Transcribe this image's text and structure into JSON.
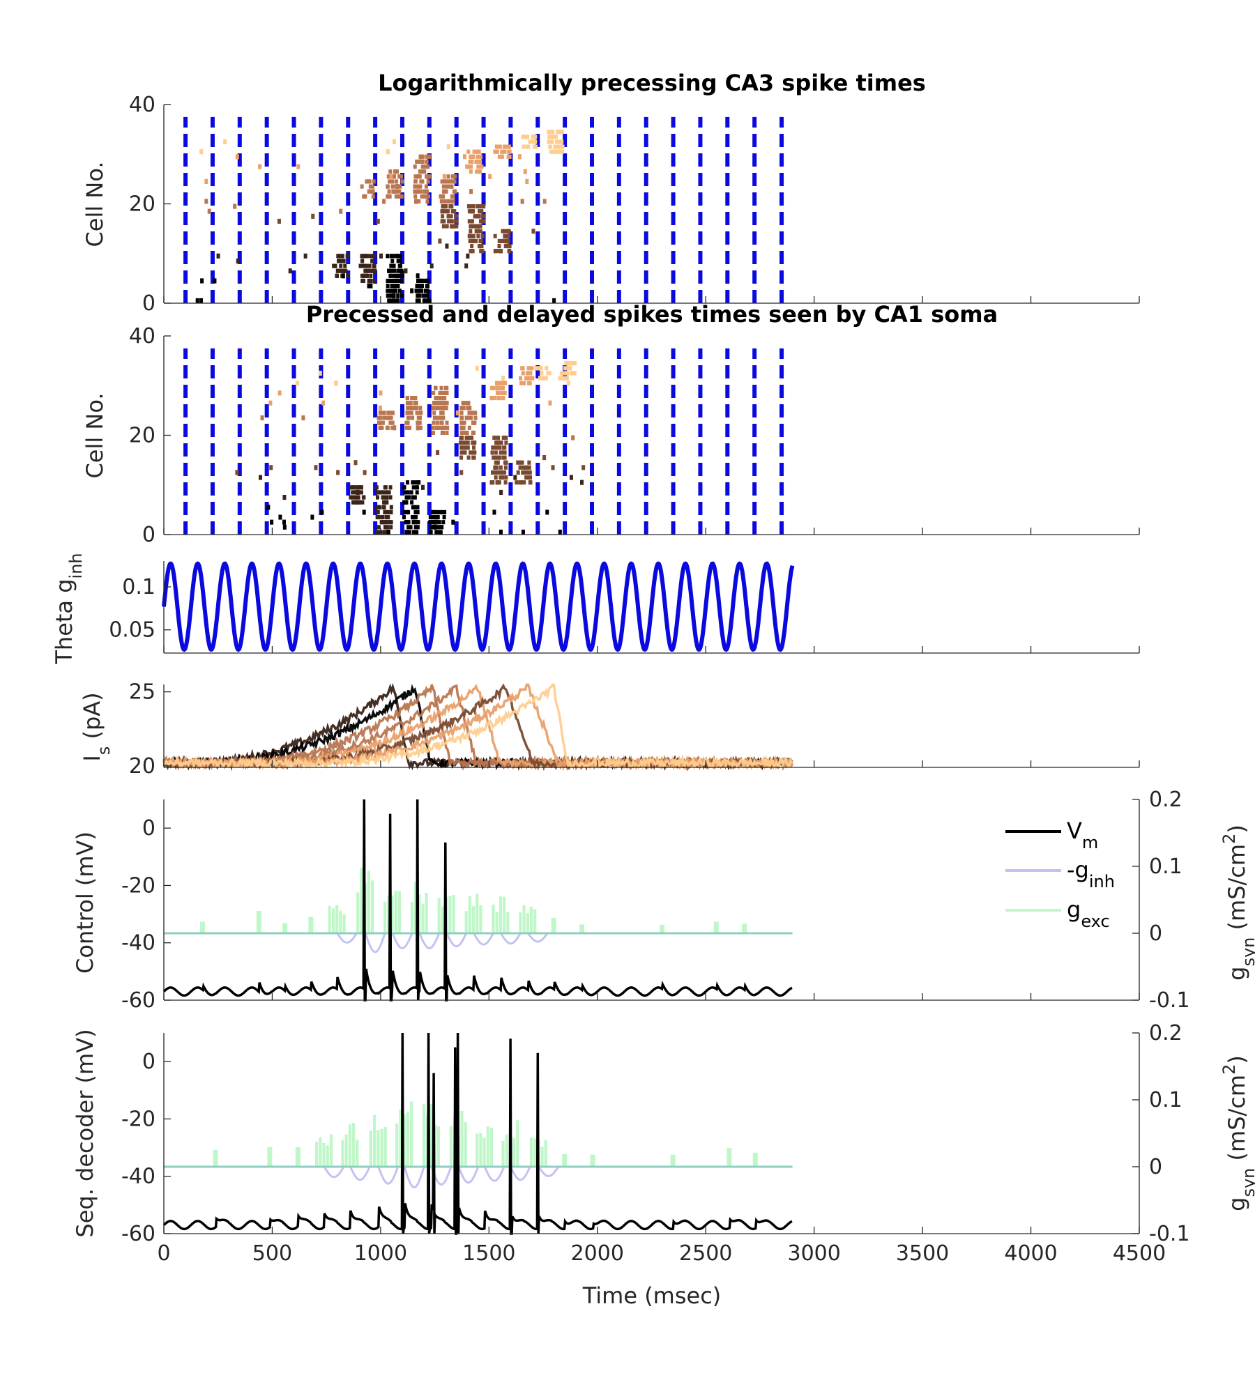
{
  "colors": {
    "theta": "#0a0adf",
    "vm": "#000000",
    "ginh": "#c3c3f3",
    "gexc": "#bff7c8",
    "overlap": "#8fcfc2",
    "cell_gradient": [
      "#000000",
      "#3b2418",
      "#7a4a30",
      "#b9764f",
      "#e9a06a",
      "#ffcd8e"
    ]
  },
  "x_axis": {
    "label": "Time (msec)",
    "lim": [
      0,
      4500
    ],
    "ticks": [
      "0",
      "500",
      "1000",
      "1500",
      "2000",
      "2500",
      "3000",
      "3500",
      "4000",
      "4500"
    ],
    "tick_values": [
      0,
      500,
      1000,
      1500,
      2000,
      2500,
      3000,
      3500,
      4000,
      4500
    ]
  },
  "chart_data": [
    {
      "id": "ca3",
      "type": "scatter",
      "title": "Logarithmically precessing CA3 spike times",
      "ylabel": "Cell No.",
      "ylim": [
        0,
        40
      ],
      "yticks": [
        "0",
        "20",
        "40"
      ],
      "ytick_values": [
        0,
        20,
        40
      ],
      "theta_markers_ms": [
        100,
        225,
        350,
        475,
        600,
        725,
        850,
        975,
        1100,
        1225,
        1350,
        1475,
        1600,
        1725,
        1850,
        1975,
        2100,
        2225,
        2350,
        2475,
        2600,
        2725,
        2850
      ],
      "spike_groups": [
        {
          "center_ms": 1190,
          "cells": [
            0,
            4
          ],
          "color_index": 0
        },
        {
          "center_ms": 1065,
          "cells": [
            0,
            9
          ],
          "color_index": 0
        },
        {
          "center_ms": 940,
          "cells": [
            4,
            9
          ],
          "color_index": 1
        },
        {
          "center_ms": 815,
          "cells": [
            5,
            9
          ],
          "color_index": 1
        },
        {
          "center_ms": 1560,
          "cells": [
            10,
            14
          ],
          "color_index": 2
        },
        {
          "center_ms": 1440,
          "cells": [
            10,
            19
          ],
          "color_index": 2
        },
        {
          "center_ms": 1315,
          "cells": [
            15,
            19
          ],
          "color_index": 2
        },
        {
          "center_ms": 1190,
          "cells": [
            20,
            29
          ],
          "color_index": 3
        },
        {
          "center_ms": 1310,
          "cells": [
            20,
            25
          ],
          "color_index": 3
        },
        {
          "center_ms": 1065,
          "cells": [
            21,
            26
          ],
          "color_index": 3
        },
        {
          "center_ms": 940,
          "cells": [
            21,
            24
          ],
          "color_index": 3
        },
        {
          "center_ms": 1430,
          "cells": [
            26,
            30
          ],
          "color_index": 4
        },
        {
          "center_ms": 1560,
          "cells": [
            29,
            31
          ],
          "color_index": 4
        },
        {
          "center_ms": 1805,
          "cells": [
            30,
            34
          ],
          "color_index": 5
        },
        {
          "center_ms": 1685,
          "cells": [
            31,
            33
          ],
          "color_index": 5
        }
      ]
    },
    {
      "id": "ca1",
      "type": "scatter",
      "title": "Precessed and delayed spikes times seen by CA1 soma",
      "ylabel": "Cell No.",
      "ylim": [
        0,
        40
      ],
      "yticks": [
        "0",
        "20",
        "40"
      ],
      "ytick_values": [
        0,
        20,
        40
      ],
      "theta_markers_ms": [
        100,
        225,
        350,
        475,
        600,
        725,
        850,
        975,
        1100,
        1225,
        1350,
        1475,
        1600,
        1725,
        1850,
        1975,
        2100,
        2225,
        2350,
        2475,
        2600,
        2725,
        2850
      ],
      "spike_groups": [
        {
          "center_ms": 1260,
          "cells": [
            0,
            4
          ],
          "color_index": 0
        },
        {
          "center_ms": 1140,
          "cells": [
            0,
            10
          ],
          "color_index": 0
        },
        {
          "center_ms": 1015,
          "cells": [
            0,
            9
          ],
          "color_index": 1
        },
        {
          "center_ms": 890,
          "cells": [
            6,
            9
          ],
          "color_index": 1
        },
        {
          "center_ms": 1660,
          "cells": [
            10,
            14
          ],
          "color_index": 2
        },
        {
          "center_ms": 1545,
          "cells": [
            10,
            19
          ],
          "color_index": 2
        },
        {
          "center_ms": 1400,
          "cells": [
            15,
            19
          ],
          "color_index": 2
        },
        {
          "center_ms": 1275,
          "cells": [
            20,
            29
          ],
          "color_index": 3
        },
        {
          "center_ms": 1405,
          "cells": [
            20,
            26
          ],
          "color_index": 3
        },
        {
          "center_ms": 1150,
          "cells": [
            21,
            27
          ],
          "color_index": 3
        },
        {
          "center_ms": 1020,
          "cells": [
            21,
            24
          ],
          "color_index": 3
        },
        {
          "center_ms": 1545,
          "cells": [
            27,
            30
          ],
          "color_index": 4
        },
        {
          "center_ms": 1665,
          "cells": [
            30,
            33
          ],
          "color_index": 4
        },
        {
          "center_ms": 1860,
          "cells": [
            31,
            34
          ],
          "color_index": 5
        },
        {
          "center_ms": 1750,
          "cells": [
            31,
            33
          ],
          "color_index": 5
        }
      ]
    },
    {
      "id": "theta",
      "type": "line",
      "ylabel": "Theta g",
      "ylabel_sub": "inh",
      "ylim": [
        0.023,
        0.13
      ],
      "yticks": [
        "0.05",
        "0.1"
      ],
      "ytick_values": [
        0.05,
        0.1
      ],
      "x_range_ms": [
        0,
        2900
      ],
      "period_ms": 125,
      "mean": 0.077,
      "amplitude": 0.05
    },
    {
      "id": "is",
      "type": "line",
      "ylabel": "I",
      "ylabel_sub": "s",
      "ylabel_suffix": " (pA)",
      "ylim": [
        19.9,
        25.5
      ],
      "yticks": [
        "20",
        "25"
      ],
      "ytick_values": [
        20,
        25
      ],
      "x_range_ms": [
        0,
        2900
      ],
      "baseline": 20.2,
      "peak": 25.3,
      "ramps": [
        {
          "start_ms": 100,
          "peak_ms": 1060,
          "end_ms": 1130,
          "color_index": 1
        },
        {
          "start_ms": 150,
          "peak_ms": 1160,
          "end_ms": 1230,
          "color_index": 0
        },
        {
          "start_ms": 300,
          "peak_ms": 1240,
          "end_ms": 1320,
          "color_index": 3
        },
        {
          "start_ms": 380,
          "peak_ms": 1350,
          "end_ms": 1440,
          "color_index": 3
        },
        {
          "start_ms": 450,
          "peak_ms": 1450,
          "end_ms": 1550,
          "color_index": 4
        },
        {
          "start_ms": 520,
          "peak_ms": 1580,
          "end_ms": 1700,
          "color_index": 2
        },
        {
          "start_ms": 600,
          "peak_ms": 1680,
          "end_ms": 1820,
          "color_index": 4
        },
        {
          "start_ms": 700,
          "peak_ms": 1800,
          "end_ms": 1860,
          "color_index": 5
        }
      ]
    },
    {
      "id": "control",
      "type": "line",
      "ylabel": "Control (mV)",
      "ylim": [
        -60,
        10
      ],
      "yticks": [
        "-60",
        "-40",
        "-20",
        "0"
      ],
      "ytick_values": [
        -60,
        -40,
        -20,
        0
      ],
      "right_ylabel": "g",
      "right_ylabel_sub": "syn",
      "right_ylabel_suffix": "  (mS/cm",
      "right_ylabel_sup": "2",
      "right_ylabel_end": ")",
      "right_ylim": [
        -0.1,
        0.2
      ],
      "right_yticks": [
        "-0.1",
        "0",
        "0.1",
        "0.2"
      ],
      "right_ytick_values": [
        -0.1,
        0,
        0.1,
        0.2
      ],
      "x_range_ms": [
        0,
        2900
      ],
      "vm_rest": -57,
      "spikes_ms": [
        925,
        1045,
        1170,
        1300
      ],
      "spike_peaks": [
        10,
        5,
        10,
        -5
      ],
      "gexc_events": [
        {
          "t_ms": 180,
          "amp": 0.02
        },
        {
          "t_ms": 440,
          "amp": 0.04
        },
        {
          "t_ms": 560,
          "amp": 0.02
        },
        {
          "t_ms": 680,
          "amp": 0.035
        },
        {
          "t_ms": 800,
          "amp": 0.05
        },
        {
          "t_ms": 930,
          "amp": 0.1
        },
        {
          "t_ms": 1055,
          "amp": 0.08
        },
        {
          "t_ms": 1180,
          "amp": 0.08
        },
        {
          "t_ms": 1305,
          "amp": 0.07
        },
        {
          "t_ms": 1430,
          "amp": 0.06
        },
        {
          "t_ms": 1555,
          "amp": 0.055
        },
        {
          "t_ms": 1680,
          "amp": 0.045
        },
        {
          "t_ms": 1800,
          "amp": 0.035
        },
        {
          "t_ms": 1930,
          "amp": 0.02
        },
        {
          "t_ms": 2300,
          "amp": 0.02
        },
        {
          "t_ms": 2550,
          "amp": 0.02
        },
        {
          "t_ms": 2680,
          "amp": 0.02
        }
      ],
      "legend": {
        "position": "top-right",
        "items": [
          {
            "label": "V",
            "sub": "m",
            "color_key": "vm"
          },
          {
            "label": "-g",
            "sub": "inh",
            "color_key": "ginh"
          },
          {
            "label": "g",
            "sub": "exc",
            "color_key": "gexc"
          }
        ]
      }
    },
    {
      "id": "decoder",
      "type": "line",
      "ylabel": "Seq. decoder (mV)",
      "ylim": [
        -60,
        10
      ],
      "yticks": [
        "-60",
        "-40",
        "-20",
        "0"
      ],
      "ytick_values": [
        -60,
        -40,
        -20,
        0
      ],
      "right_ylabel": "g",
      "right_ylabel_sub": "syn",
      "right_ylabel_suffix": "  (mS/cm",
      "right_ylabel_sup": "2",
      "right_ylabel_end": ")",
      "right_ylim": [
        -0.1,
        0.2
      ],
      "right_yticks": [
        "-0.1",
        "0",
        "0.1",
        "0.2"
      ],
      "right_ytick_values": [
        -0.1,
        0,
        0.1,
        0.2
      ],
      "x_range_ms": [
        0,
        2900
      ],
      "vm_rest": -57,
      "spikes_ms": [
        1100,
        1220,
        1245,
        1345,
        1355,
        1600,
        1725
      ],
      "spike_peaks": [
        10,
        10,
        -4,
        5,
        10,
        8,
        3
      ],
      "gexc_events": [
        {
          "t_ms": 240,
          "amp": 0.035
        },
        {
          "t_ms": 490,
          "amp": 0.03
        },
        {
          "t_ms": 620,
          "amp": 0.04
        },
        {
          "t_ms": 740,
          "amp": 0.055
        },
        {
          "t_ms": 860,
          "amp": 0.07
        },
        {
          "t_ms": 990,
          "amp": 0.09
        },
        {
          "t_ms": 1110,
          "amp": 0.11
        },
        {
          "t_ms": 1235,
          "amp": 0.095
        },
        {
          "t_ms": 1360,
          "amp": 0.085
        },
        {
          "t_ms": 1480,
          "amp": 0.075
        },
        {
          "t_ms": 1600,
          "amp": 0.07
        },
        {
          "t_ms": 1730,
          "amp": 0.05
        },
        {
          "t_ms": 1850,
          "amp": 0.03
        },
        {
          "t_ms": 1980,
          "amp": 0.02
        },
        {
          "t_ms": 2350,
          "amp": 0.03
        },
        {
          "t_ms": 2610,
          "amp": 0.035
        },
        {
          "t_ms": 2730,
          "amp": 0.035
        }
      ]
    }
  ]
}
